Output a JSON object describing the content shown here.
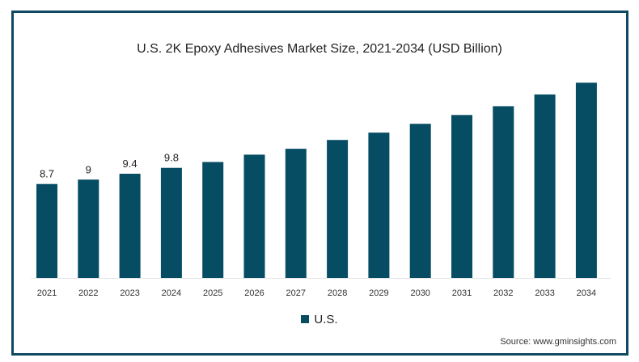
{
  "chart_data": {
    "type": "bar",
    "title": "U.S. 2K Epoxy Adhesives Market Size, 2021-2034 (USD Billion)",
    "categories": [
      "2021",
      "2022",
      "2023",
      "2024",
      "2025",
      "2026",
      "2027",
      "2028",
      "2029",
      "2030",
      "2031",
      "2032",
      "2033",
      "2034"
    ],
    "series": [
      {
        "name": "U.S.",
        "values": [
          8.7,
          9.0,
          9.4,
          9.8,
          10.2,
          10.7,
          11.1,
          11.7,
          12.2,
          12.8,
          13.4,
          14.0,
          14.8,
          15.6
        ]
      }
    ],
    "data_labels": [
      "8.7",
      "9",
      "9.4",
      "9.8"
    ],
    "xlabel": "",
    "ylabel": "",
    "ylim": [
      2.3,
      16.5
    ],
    "grid": false,
    "legend": "bottom-center",
    "bar_color": "#064d63",
    "frame_color": "#0f4a62"
  },
  "source": "Source: www.gminsights.com"
}
